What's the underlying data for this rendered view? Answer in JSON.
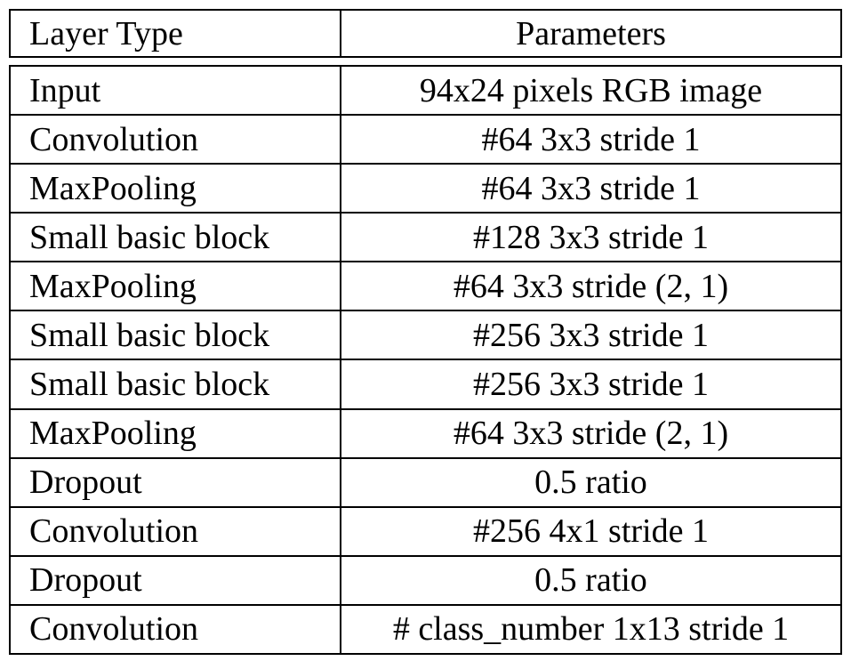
{
  "table": {
    "title": "network-architecture-table",
    "columns": {
      "layer_type_header": "Layer Type",
      "parameters_header": "Parameters"
    },
    "rows": [
      {
        "layer": "Input",
        "params": "94x24 pixels RGB image"
      },
      {
        "layer": "Convolution",
        "params": "#64 3x3 stride 1"
      },
      {
        "layer": "MaxPooling",
        "params": "#64 3x3 stride 1"
      },
      {
        "layer": "Small basic block",
        "params": "#128 3x3 stride 1"
      },
      {
        "layer": "MaxPooling",
        "params": "#64 3x3 stride (2, 1)"
      },
      {
        "layer": "Small basic block",
        "params": "#256 3x3 stride 1"
      },
      {
        "layer": "Small basic block",
        "params": "#256 3x3 stride 1"
      },
      {
        "layer": "MaxPooling",
        "params": "#64 3x3 stride (2, 1)"
      },
      {
        "layer": "Dropout",
        "params": "0.5 ratio"
      },
      {
        "layer": "Convolution",
        "params": "#256 4x1 stride 1"
      },
      {
        "layer": "Dropout",
        "params": "0.5 ratio"
      },
      {
        "layer": "Convolution",
        "params": "# class_number 1x13 stride 1"
      }
    ],
    "colors": {
      "border": "#000000",
      "text": "#000000",
      "background": "#ffffff"
    }
  }
}
